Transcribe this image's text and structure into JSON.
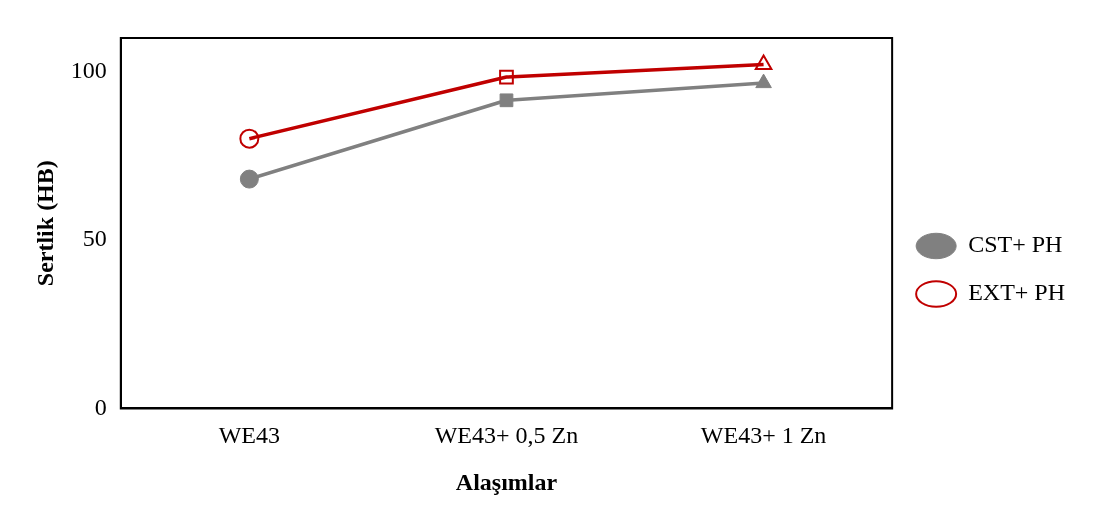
{
  "chart_data": {
    "type": "line",
    "xlabel": "Alaşımlar",
    "ylabel": "Sertlik (HB)",
    "categories": [
      "WE43",
      "WE43+ 0,5 Zn",
      "WE43+ 1 Zn"
    ],
    "series": [
      {
        "name": "CST+ PH",
        "color": "#808080",
        "values": [
          68.1,
          91.5,
          96.6
        ]
      },
      {
        "name": "EXT+ PH",
        "color": "#c00000",
        "values": [
          80.1,
          98.4,
          102.1
        ]
      }
    ],
    "ylim": [
      0,
      110
    ],
    "yticks": [
      0,
      50,
      100
    ],
    "grid": false,
    "legend": "right",
    "marker": [
      "circle",
      "square",
      "triangle"
    ],
    "line_style": "solid"
  }
}
